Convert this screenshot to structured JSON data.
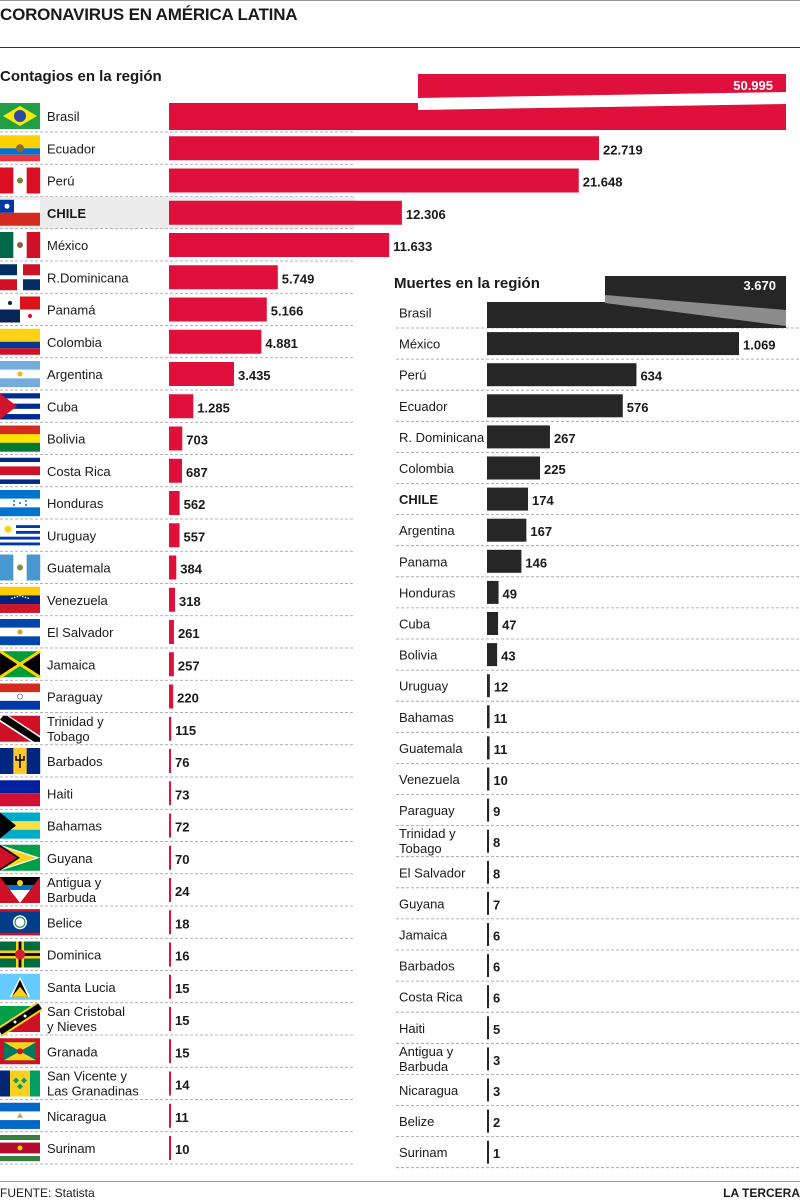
{
  "header": {
    "title": "CORONAVIRUS EN AMÉRICA LATINA"
  },
  "footer": {
    "source": "FUENTE: Statista",
    "brand": "LA TERCERA"
  },
  "colors": {
    "cases": "#e0103c",
    "deaths": "#262626",
    "highlight_row": "#ececec"
  },
  "chart_data": [
    {
      "type": "bar",
      "title": "Contagios en la región",
      "orientation": "horizontal",
      "highlight": "CHILE",
      "categories": [
        "Brasil",
        "Ecuador",
        "Perú",
        "CHILE",
        "México",
        "R.Dominicana",
        "Panamá",
        "Colombia",
        "Argentina",
        "Cuba",
        "Bolivia",
        "Costa Rica",
        "Honduras",
        "Uruguay",
        "Guatemala",
        "Venezuela",
        "El Salvador",
        "Jamaica",
        "Paraguay",
        "Trinidad y Tobago",
        "Barbados",
        "Haiti",
        "Bahamas",
        "Guyana",
        "Antigua y Barbuda",
        "Belice",
        "Dominica",
        "Santa Lucia",
        "San Cristobal y Nieves",
        "Granada",
        "San Vicente y Las Granadinas",
        "Nicaragua",
        "Surinam"
      ],
      "values": [
        50995,
        22719,
        21648,
        12306,
        11633,
        5749,
        5166,
        4881,
        3435,
        1285,
        703,
        687,
        562,
        557,
        384,
        318,
        261,
        257,
        220,
        115,
        76,
        73,
        72,
        70,
        24,
        18,
        16,
        15,
        15,
        15,
        14,
        11,
        10
      ],
      "labels": [
        "50.995",
        "22.719",
        "21.648",
        "12.306",
        "11.633",
        "5.749",
        "5.166",
        "4.881",
        "3.435",
        "1.285",
        "703",
        "687",
        "562",
        "557",
        "384",
        "318",
        "261",
        "257",
        "220",
        "115",
        "76",
        "73",
        "72",
        "70",
        "24",
        "18",
        "16",
        "15",
        "15",
        "15",
        "14",
        "11",
        "10"
      ],
      "flags": [
        "flag-brasil",
        "flag-ecuador",
        "flag-peru",
        "flag-chile",
        "flag-mexico",
        "flag-r-dominicana",
        "flag-panama",
        "flag-colombia",
        "flag-argentina",
        "flag-cuba",
        "flag-bolivia",
        "flag-costa-rica",
        "flag-honduras",
        "flag-uruguay",
        "flag-guatemala",
        "flag-venezuela",
        "flag-el-salvador",
        "flag-jamaica",
        "flag-paraguay",
        "flag-trinidad-y-tobago",
        "flag-barbados",
        "flag-haiti",
        "flag-bahamas",
        "flag-guyana",
        "flag-antigua-y-barbuda",
        "flag-belice",
        "flag-dominica",
        "flag-santa-lucia",
        "flag-san-cristobal-y-nieves",
        "flag-granada",
        "flag-san-vicente-y-las-granadinas",
        "flag-nicaragua",
        "flag-surinam"
      ]
    },
    {
      "type": "bar",
      "title": "Muertes en la región",
      "orientation": "horizontal",
      "highlight": "CHILE",
      "categories": [
        "Brasil",
        "México",
        "Perú",
        "Ecuador",
        "R. Dominicana",
        "Colombia",
        "CHILE",
        "Argentina",
        "Panama",
        "Honduras",
        "Cuba",
        "Bolivia",
        "Uruguay",
        "Bahamas",
        "Guatemala",
        "Venezuela",
        "Paraguay",
        "Trinidad y Tobago",
        "El Salvador",
        "Guyana",
        "Jamaica",
        "Barbados",
        "Costa Rica",
        "Haiti",
        "Antigua y Barbuda",
        "Nicaragua",
        "Belize",
        "Surinam"
      ],
      "values": [
        3670,
        1069,
        634,
        576,
        267,
        225,
        174,
        167,
        146,
        49,
        47,
        43,
        12,
        11,
        11,
        10,
        9,
        8,
        8,
        7,
        6,
        6,
        6,
        5,
        3,
        3,
        2,
        1
      ],
      "labels": [
        "3.670",
        "1.069",
        "634",
        "576",
        "267",
        "225",
        "174",
        "167",
        "146",
        "49",
        "47",
        "43",
        "12",
        "11",
        "11",
        "10",
        "9",
        "8",
        "8",
        "7",
        "6",
        "6",
        "6",
        "5",
        "3",
        "3",
        "2",
        "1"
      ]
    }
  ]
}
